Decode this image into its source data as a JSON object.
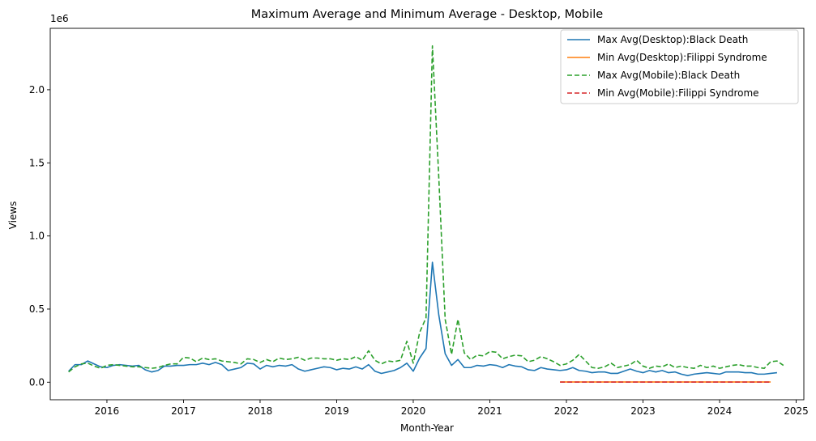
{
  "chart_data": {
    "type": "line",
    "title": "Maximum Average and Minimum Average - Desktop, Mobile",
    "xlabel": "Month-Year",
    "ylabel": "Views",
    "y_offset_label": "1e6",
    "xlim": [
      2015.26,
      2025.1
    ],
    "ylim": [
      -120000,
      2420000
    ],
    "x_ticks": [
      2016,
      2017,
      2018,
      2019,
      2020,
      2021,
      2022,
      2023,
      2024,
      2025
    ],
    "x_tick_labels": [
      "2016",
      "2017",
      "2018",
      "2019",
      "2020",
      "2021",
      "2022",
      "2023",
      "2024",
      "2025"
    ],
    "y_ticks": [
      0,
      500000,
      1000000,
      1500000,
      2000000
    ],
    "y_tick_labels": [
      "0.0",
      "0.5",
      "1.0",
      "1.5",
      "2.0"
    ],
    "grid": false,
    "legend_position": "top-right",
    "x_start_year": 2015,
    "x_start_month": 7,
    "series": [
      {
        "name": "Max Avg(Desktop):Black Death",
        "color": "#1f77b4",
        "dash": "solid",
        "start": "2015-07",
        "values": [
          75000,
          120000,
          120000,
          145000,
          125000,
          105000,
          100000,
          115000,
          120000,
          115000,
          110000,
          115000,
          85000,
          70000,
          80000,
          110000,
          110000,
          115000,
          115000,
          120000,
          120000,
          130000,
          120000,
          135000,
          120000,
          80000,
          90000,
          100000,
          130000,
          125000,
          90000,
          115000,
          105000,
          115000,
          110000,
          120000,
          90000,
          75000,
          85000,
          95000,
          105000,
          100000,
          85000,
          95000,
          90000,
          105000,
          90000,
          120000,
          75000,
          60000,
          70000,
          80000,
          100000,
          130000,
          75000,
          165000,
          230000,
          820000,
          460000,
          195000,
          115000,
          155000,
          100000,
          100000,
          115000,
          110000,
          120000,
          115000,
          100000,
          120000,
          110000,
          105000,
          85000,
          80000,
          100000,
          90000,
          85000,
          80000,
          85000,
          100000,
          80000,
          75000,
          65000,
          70000,
          70000,
          60000,
          60000,
          75000,
          90000,
          75000,
          65000,
          80000,
          70000,
          80000,
          65000,
          70000,
          55000,
          45000,
          55000,
          60000,
          65000,
          60000,
          55000,
          70000,
          70000,
          70000,
          65000,
          65000,
          55000,
          55000,
          60000,
          65000
        ]
      },
      {
        "name": "Min Avg(Desktop):Filippi Syndrome",
        "color": "#ff7f0e",
        "dash": "solid",
        "start": "2021-12",
        "values": [
          1500,
          1500,
          1500,
          1500,
          1500,
          1500,
          1500,
          1500,
          1500,
          1500,
          1500,
          1500,
          1500,
          1500,
          1500,
          1500,
          1500,
          1500,
          1500,
          1500,
          1500,
          1500,
          1500,
          1500,
          1500,
          1500,
          1500,
          1500,
          1500,
          1500,
          1500,
          1500,
          1500,
          1500
        ]
      },
      {
        "name": "Max Avg(Mobile):Black Death",
        "color": "#2ca02c",
        "dash": "dashed",
        "start": "2015-07",
        "values": [
          70000,
          105000,
          125000,
          130000,
          110000,
          95000,
          115000,
          120000,
          115000,
          110000,
          105000,
          105000,
          100000,
          95000,
          100000,
          115000,
          125000,
          125000,
          170000,
          165000,
          140000,
          165000,
          155000,
          160000,
          145000,
          140000,
          135000,
          125000,
          160000,
          155000,
          135000,
          155000,
          140000,
          165000,
          155000,
          160000,
          170000,
          150000,
          165000,
          165000,
          160000,
          160000,
          150000,
          160000,
          155000,
          175000,
          150000,
          215000,
          150000,
          125000,
          145000,
          140000,
          150000,
          280000,
          130000,
          340000,
          440000,
          2300000,
          1400000,
          430000,
          190000,
          430000,
          200000,
          155000,
          185000,
          180000,
          210000,
          205000,
          160000,
          175000,
          185000,
          180000,
          140000,
          150000,
          175000,
          160000,
          140000,
          115000,
          125000,
          150000,
          190000,
          145000,
          100000,
          95000,
          105000,
          130000,
          100000,
          110000,
          120000,
          150000,
          110000,
          95000,
          110000,
          105000,
          125000,
          100000,
          110000,
          100000,
          95000,
          115000,
          100000,
          110000,
          95000,
          105000,
          115000,
          120000,
          110000,
          110000,
          100000,
          95000,
          140000,
          145000,
          115000
        ]
      },
      {
        "name": "Min Avg(Mobile):Filippi Syndrome",
        "color": "#d62728",
        "dash": "dashed",
        "start": "2021-12",
        "values": [
          500,
          500,
          500,
          500,
          500,
          500,
          500,
          500,
          500,
          500,
          500,
          500,
          500,
          500,
          500,
          500,
          500,
          500,
          500,
          500,
          500,
          500,
          500,
          500,
          500,
          500,
          500,
          500,
          500,
          500,
          500,
          500,
          500,
          500
        ]
      }
    ]
  }
}
